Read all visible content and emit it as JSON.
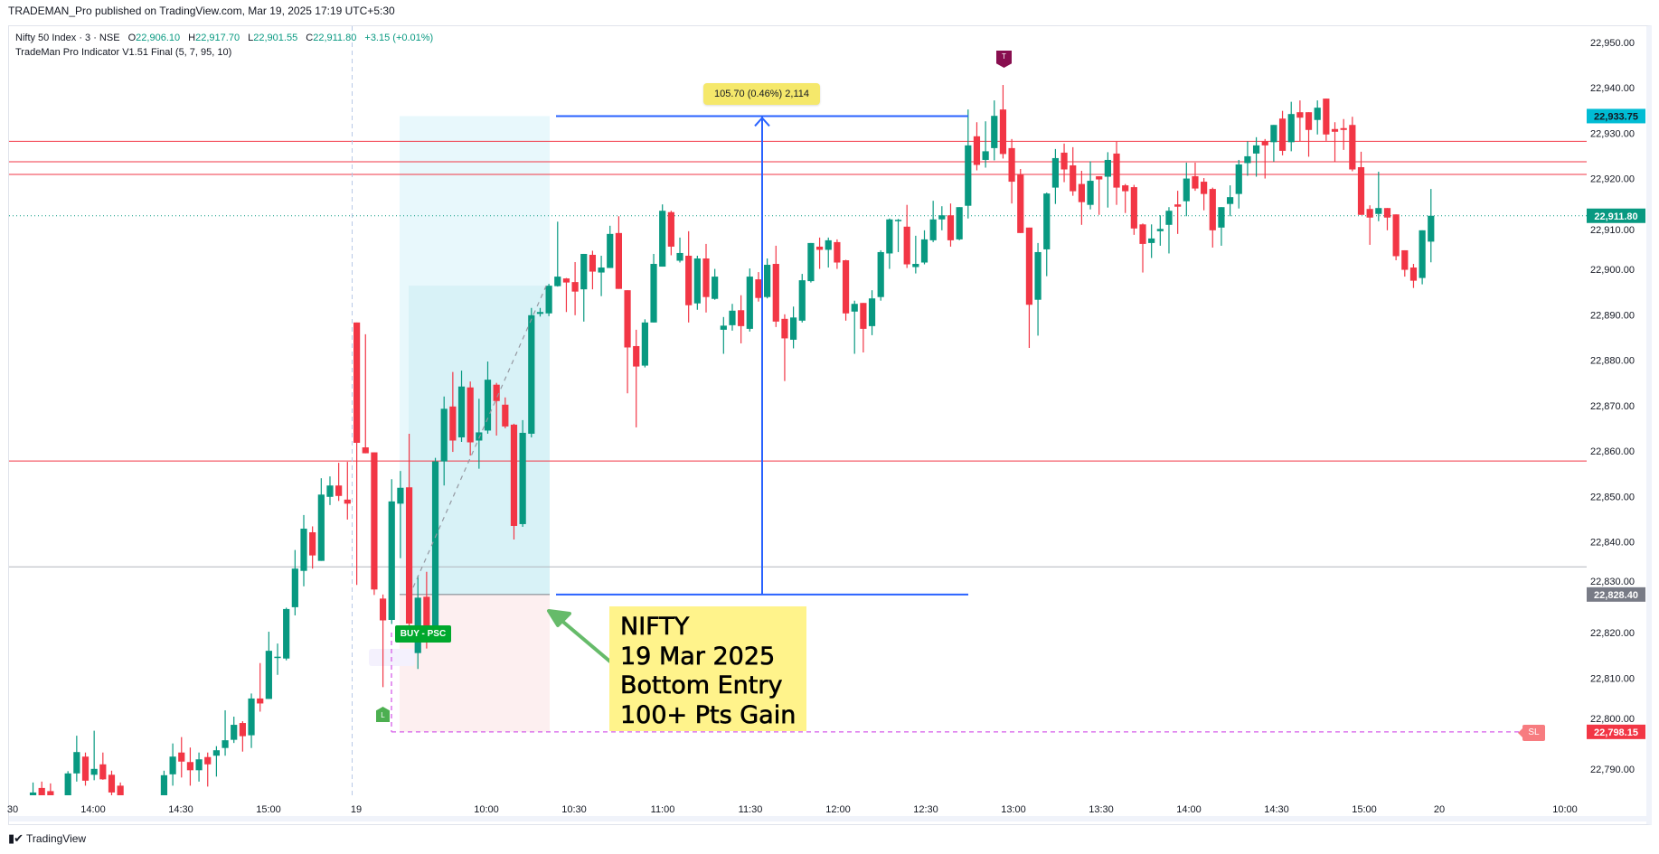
{
  "header": {
    "published": "TRADEMAN_Pro published on TradingView.com, Mar 19, 2025 17:19 UTC+5:30"
  },
  "legend": {
    "symbol": "Nifty 50 Index · 3 · NSE",
    "o_label": "O",
    "o": "22,906.10",
    "h_label": "H",
    "h": "22,917.70",
    "l_label": "L",
    "l": "22,901.55",
    "c_label": "C",
    "c": "22,911.80",
    "change": "+3.15 (+0.01%)",
    "indicator": "TradeMan Pro Indicator V1.51 Final (5, 7, 95, 10)"
  },
  "annotations": {
    "measure": "105.70 (0.46%) 2,114",
    "buy": "BUY -  PSC",
    "l_marker": "L",
    "t_marker": "T",
    "sl": "SL",
    "note_lines": [
      "NIFTY",
      "19 Mar 2025",
      "Bottom Entry",
      "100+ Pts Gain"
    ]
  },
  "footer": {
    "brand": "TradingView",
    "logo_icon": "tradingview-logo-icon"
  },
  "colors": {
    "up": "#089981",
    "down": "#f23645",
    "target_badge": "#00bcd4",
    "last_badge": "#089981",
    "entry_badge": "#787b86",
    "stop_badge": "#f23645",
    "measure": "#2962ff",
    "note_bg": "#fff38b",
    "level_line": "#f23645"
  },
  "chart_data": {
    "type": "candlestick",
    "interval": "3",
    "ylim": [
      22785,
      22955
    ],
    "y_ticks": [
      "22,790.00",
      "22,800.00",
      "22,810.00",
      "22,820.00",
      "22,830.00",
      "22,840.00",
      "22,850.00",
      "22,860.00",
      "22,870.00",
      "22,880.00",
      "22,890.00",
      "22,900.00",
      "22,910.00",
      "22,920.00",
      "22,930.00",
      "22,940.00",
      "22,950.00"
    ],
    "x_ticks": [
      "30",
      "14:00",
      "14:30",
      "15:00",
      "19",
      "10:00",
      "10:30",
      "11:00",
      "11:30",
      "12:00",
      "12:30",
      "13:00",
      "13:30",
      "14:00",
      "14:30",
      "15:00",
      "20",
      "10:00"
    ],
    "price_badges": [
      {
        "label": "22,933.75",
        "value": 22933.75,
        "color": "#00bcd4"
      },
      {
        "label": "22,911.80",
        "value": 22911.8,
        "color": "#089981"
      },
      {
        "label": "22,828.40",
        "value": 22828.4,
        "color": "#787b86"
      },
      {
        "label": "22,798.15",
        "value": 22798.15,
        "color": "#f23645"
      }
    ],
    "levels": {
      "red": [
        22928.2,
        22923.7,
        22920.9,
        22857.8
      ],
      "gray": [
        22834.5
      ],
      "last": 22911.8
    },
    "position": {
      "target": 22933.75,
      "entry": 22828.4,
      "stop": 22798.15,
      "inner_top": 22896.4
    },
    "sessions": [
      {
        "label": "",
        "candles": [
          [
            22783.8,
            22787.0,
            22783.0,
            22784.8
          ],
          [
            22785.8,
            22787.2,
            22783.0,
            22783.8
          ],
          [
            22785.1,
            22786.8,
            22783.0,
            22783.8
          ],
          null,
          [
            22780.0,
            22789.5,
            22779.0,
            22789.0
          ],
          [
            22789.0,
            22797.3,
            22787.2,
            22793.7
          ],
          [
            22792.7,
            22793.6,
            22786.3,
            22787.4
          ],
          [
            22788.7,
            22798.4,
            22787.5,
            22790.0
          ],
          [
            22791.0,
            22793.6,
            22787.6,
            22787.7
          ],
          [
            22788.7,
            22789.6,
            22783.8,
            22784.8
          ],
          [
            22786.3,
            22787.0,
            22780.0,
            22782.0
          ],
          null,
          null,
          null,
          null,
          [
            22780.0,
            22789.6,
            22779.0,
            22788.6
          ],
          [
            22788.8,
            22795.6,
            22786.3,
            22792.7
          ],
          [
            22793.6,
            22797.0,
            22788.1,
            22791.6
          ],
          [
            22791.5,
            22794.7,
            22786.3,
            22789.7
          ],
          [
            22789.7,
            22793.6,
            22787.2,
            22792.1
          ],
          [
            22792.6,
            22793.6,
            22786.1,
            22791.0
          ],
          [
            22792.9,
            22795.0,
            22788.3,
            22794.1
          ],
          [
            22794.6,
            22802.9,
            22792.9,
            22796.3
          ],
          [
            22796.4,
            22801.5,
            22795.7,
            22799.7
          ],
          [
            22800.1,
            22800.5,
            22793.8,
            22797.2
          ],
          [
            22797.4,
            22806.6,
            22794.6,
            22805.5
          ],
          [
            22805.5,
            22813.3,
            22802.6,
            22804.4
          ],
          [
            22805.4,
            22820.2,
            22805.4,
            22816.0
          ],
          [
            22814.6,
            22817.6,
            22810.7,
            22814.7
          ],
          [
            22814.3,
            22825.5,
            22813.9,
            22825.2
          ],
          [
            22825.6,
            22838.2,
            22823.8,
            22834.1
          ],
          [
            22833.6,
            22845.9,
            22830.2,
            22842.9
          ],
          [
            22842.1,
            22843.4,
            22834.1,
            22837.0
          ],
          [
            22835.8,
            22854.0,
            22835.8,
            22850.4
          ],
          [
            22849.9,
            22854.4,
            22848.1,
            22852.4
          ],
          [
            22852.4,
            22857.4,
            22849.0,
            22850.1
          ],
          [
            22849.3,
            22857.6,
            22844.9,
            22848.4
          ]
        ]
      },
      {
        "label": "19",
        "candles": [
          [
            22888.3,
            22888.3,
            22830.5,
            22861.8
          ],
          [
            22860.8,
            22885.7,
            22859.5,
            22859.5
          ],
          [
            22859.7,
            22859.7,
            22828.3,
            22829.5
          ],
          [
            22827.5,
            22828.4,
            22808.0,
            22822.7
          ],
          [
            22822.8,
            22853.8,
            22821.9,
            22848.9
          ],
          [
            22848.4,
            22855.6,
            22836.4,
            22851.9
          ],
          [
            22852.0,
            22863.8,
            22820.0,
            22822.0
          ],
          [
            22815.5,
            22832.5,
            22812.0,
            22827.7
          ],
          [
            22827.9,
            22833.4,
            22816.5,
            22818.3
          ],
          [
            22819.7,
            22858.5,
            22818.0,
            22857.7
          ],
          [
            22857.7,
            22872.0,
            22852.4,
            22869.3
          ],
          [
            22869.8,
            22877.4,
            22859.8,
            22862.3
          ],
          [
            22863.0,
            22877.7,
            22862.0,
            22874.2
          ],
          [
            22874.0,
            22875.3,
            22859.0,
            22861.9
          ],
          [
            22862.3,
            22871.5,
            22856.1,
            22864.1
          ],
          [
            22864.5,
            22879.7,
            22863.8,
            22875.7
          ],
          [
            22874.6,
            22875.0,
            22863.4,
            22871.0
          ],
          [
            22870.2,
            22871.8,
            22865.0,
            22865.4
          ],
          [
            22865.8,
            22866.0,
            22840.5,
            22843.5
          ],
          [
            22843.9,
            22866.8,
            22843.3,
            22864.0
          ],
          [
            22863.8,
            22891.5,
            22863.0,
            22889.9
          ],
          [
            22890.2,
            22891.5,
            22889.6,
            22890.6
          ],
          [
            22890.3,
            22896.8,
            22889.7,
            22896.4
          ],
          [
            22896.3,
            22910.5,
            22896.2,
            22898.4
          ],
          [
            22898.0,
            22898.1,
            22890.6,
            22897.1
          ],
          [
            22897.2,
            22901.6,
            22889.9,
            22895.1
          ],
          [
            22895.6,
            22903.4,
            22888.5,
            22903.4
          ],
          [
            22903.2,
            22904.1,
            22895.6,
            22899.5
          ],
          [
            22899.3,
            22903.0,
            22894.1,
            22900.4
          ],
          [
            22900.3,
            22909.6,
            22900.3,
            22907.8
          ],
          [
            22908.0,
            22911.7,
            22895.7,
            22895.7
          ],
          [
            22895.4,
            22895.4,
            22872.7,
            22882.8
          ],
          [
            22883.1,
            22886.7,
            22865.2,
            22878.6
          ],
          [
            22878.8,
            22889.0,
            22878.4,
            22888.3
          ],
          [
            22888.3,
            22903.4,
            22888.3,
            22901.2
          ],
          [
            22900.6,
            22914.3,
            22900.6,
            22912.9
          ],
          [
            22912.6,
            22912.9,
            22903.1,
            22905.0
          ],
          [
            22901.9,
            22907.0,
            22901.5,
            22903.6
          ],
          [
            22903.0,
            22908.4,
            22888.3,
            22892.1
          ],
          [
            22892.5,
            22903.0,
            22891.1,
            22902.4
          ],
          [
            22902.4,
            22905.6,
            22890.5,
            22893.9
          ],
          [
            22893.5,
            22900.1,
            22893.3,
            22898.4
          ],
          [
            22886.7,
            22889.5,
            22881.4,
            22887.6
          ],
          [
            22887.7,
            22892.4,
            22886.5,
            22890.9
          ],
          [
            22891.0,
            22894.3,
            22883.7,
            22887.5
          ],
          [
            22886.9,
            22900.2,
            22886.3,
            22898.4
          ],
          [
            22897.8,
            22899.4,
            22892.9,
            22893.7
          ],
          [
            22893.9,
            22902.4,
            22893.6,
            22901.0
          ],
          [
            22901.2,
            22905.2,
            22887.3,
            22888.5
          ],
          [
            22889.1,
            22890.1,
            22875.4,
            22884.8
          ],
          [
            22884.5,
            22891.8,
            22882.6,
            22889.4
          ],
          [
            22888.7,
            22899.0,
            22888.3,
            22897.6
          ],
          [
            22897.4,
            22905.8,
            22897.1,
            22905.8
          ],
          [
            22905.0,
            22907.0,
            22900.1,
            22904.3
          ],
          [
            22904.3,
            22907.0,
            22900.4,
            22906.4
          ],
          [
            22906.0,
            22906.6,
            22900.1,
            22901.5
          ],
          [
            22902.0,
            22902.1,
            22888.7,
            22890.3
          ],
          [
            22890.7,
            22893.1,
            22881.4,
            22892.4
          ],
          [
            22892.6,
            22892.6,
            22881.7,
            22886.9
          ],
          [
            22887.5,
            22895.4,
            22885.5,
            22893.6
          ],
          [
            22893.9,
            22904.2,
            22893.1,
            22903.8
          ],
          [
            22903.5,
            22911.2,
            22900.1,
            22911.0
          ],
          [
            22910.6,
            22911.1,
            22903.8,
            22910.9
          ],
          [
            22909.4,
            22914.2,
            22900.3,
            22901.1
          ],
          [
            22900.5,
            22907.4,
            22899.1,
            22901.2
          ],
          [
            22901.5,
            22908.6,
            22901.1,
            22906.6
          ],
          [
            22906.4,
            22915.1,
            22906.0,
            22911.0
          ],
          [
            22911.0,
            22913.9,
            22908.6,
            22911.9
          ],
          [
            22911.9,
            22914.5,
            22905.0,
            22906.4
          ],
          [
            22906.6,
            22913.7,
            22906.4,
            22913.7
          ],
          [
            22914.0,
            22935.2,
            22911.2,
            22927.3
          ],
          [
            22929.3,
            22932.4,
            22921.8,
            22923.0
          ],
          [
            22924.1,
            22932.6,
            22922.4,
            22926.0
          ],
          [
            22926.7,
            22937.2,
            22924.0,
            22933.8
          ],
          [
            22935.2,
            22940.6,
            22924.4,
            22925.4
          ],
          [
            22926.7,
            22928.7,
            22914.5,
            22919.3
          ],
          [
            22920.8,
            22922.1,
            22908.0,
            22908.0
          ],
          [
            22909.2,
            22909.2,
            22882.7,
            22892.2
          ],
          [
            22893.3,
            22905.8,
            22885.4,
            22903.8
          ],
          [
            22904.4,
            22916.9,
            22898.5,
            22916.7
          ],
          [
            22918.0,
            22926.5,
            22914.4,
            22924.5
          ],
          [
            22925.7,
            22927.7,
            22919.2,
            22922.0
          ],
          [
            22922.9,
            22926.9,
            22916.2,
            22917.2
          ],
          [
            22918.8,
            22921.7,
            22909.8,
            22914.8
          ],
          [
            22914.2,
            22923.8,
            22913.2,
            22919.5
          ],
          [
            22920.5,
            22920.5,
            22912.0,
            22919.8
          ],
          [
            22920.4,
            22925.8,
            22913.6,
            22924.1
          ],
          [
            22925.5,
            22928.1,
            22914.2,
            22918.0
          ],
          [
            22918.5,
            22918.8,
            22912.4,
            22917.2
          ],
          [
            22918.1,
            22918.6,
            22907.6,
            22909.0
          ],
          [
            22909.9,
            22910.1,
            22899.3,
            22905.6
          ],
          [
            22905.8,
            22909.9,
            22902.5,
            22906.8
          ],
          [
            22908.4,
            22911.9,
            22905.2,
            22908.9
          ],
          [
            22909.8,
            22913.7,
            22903.5,
            22912.9
          ],
          [
            22914.3,
            22917.3,
            22907.8,
            22913.8
          ],
          [
            22915.0,
            22923.5,
            22911.7,
            22920.0
          ],
          [
            22920.5,
            22923.5,
            22917.3,
            22917.8
          ],
          [
            22919.3,
            22920.1,
            22913.0,
            22916.6
          ],
          [
            22917.7,
            22918.0,
            22904.8,
            22908.6
          ],
          [
            22909.2,
            22913.7,
            22905.2,
            22913.7
          ],
          [
            22914.4,
            22918.5,
            22911.7,
            22915.9
          ],
          [
            22916.6,
            22924.1,
            22913.4,
            22923.1
          ],
          [
            22923.4,
            22928.2,
            22920.6,
            22924.9
          ],
          [
            22925.5,
            22929.1,
            22920.4,
            22927.3
          ],
          [
            22928.2,
            22928.7,
            22920.0,
            22927.3
          ],
          [
            22928.0,
            22931.8,
            22923.7,
            22931.8
          ],
          [
            22933.2,
            22934.9,
            22925.1,
            22926.1
          ],
          [
            22928.0,
            22936.9,
            22926.0,
            22934.2
          ],
          [
            22934.6,
            22937.2,
            22928.2,
            22933.4
          ],
          [
            22934.6,
            22934.6,
            22924.8,
            22930.7
          ],
          [
            22932.9,
            22937.2,
            22929.7,
            22935.6
          ],
          [
            22937.6,
            22937.6,
            22928.3,
            22929.7
          ],
          [
            22930.9,
            22932.4,
            22923.7,
            22930.3
          ],
          [
            22931.1,
            22933.1,
            22926.3,
            22930.7
          ],
          [
            22931.8,
            22933.6,
            22921.6,
            22922.0
          ],
          [
            22922.5,
            22925.9,
            22912.0,
            22912.0
          ],
          [
            22913.3,
            22914.1,
            22905.4,
            22911.4
          ],
          [
            22912.2,
            22921.5,
            22910.6,
            22913.5
          ],
          [
            22913.5,
            22913.5,
            22908.6,
            22911.4
          ],
          [
            22912.1,
            22912.1,
            22902.0,
            22902.9
          ],
          [
            22904.2,
            22904.2,
            22898.4,
            22899.9
          ],
          [
            22900.4,
            22901.2,
            22895.9,
            22897.5
          ],
          [
            22898.1,
            22908.6,
            22896.7,
            22908.6
          ],
          [
            22906.1,
            22917.7,
            22901.55,
            22911.8
          ]
        ]
      }
    ]
  }
}
